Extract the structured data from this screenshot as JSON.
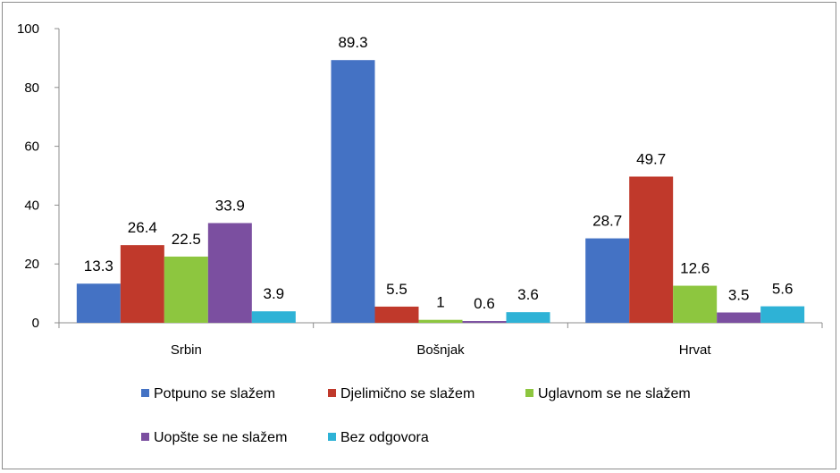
{
  "chart_data": {
    "type": "bar",
    "categories": [
      "Srbin",
      "Bošnjak",
      "Hrvat"
    ],
    "series": [
      {
        "name": "Potpuno se slažem",
        "color": "#4472c4",
        "values": [
          13.3,
          89.3,
          28.7
        ]
      },
      {
        "name": "Djelimično se slažem",
        "color": "#c0392b",
        "values": [
          26.4,
          5.5,
          49.7
        ]
      },
      {
        "name": "Uglavnom se ne slažem",
        "color": "#8dc63f",
        "values": [
          22.5,
          1,
          12.6
        ]
      },
      {
        "name": "Uopšte se ne slažem",
        "color": "#7b4fa0",
        "values": [
          33.9,
          0.6,
          3.5
        ]
      },
      {
        "name": "Bez odgovora",
        "color": "#2eb2d6",
        "values": [
          3.9,
          3.6,
          5.6
        ]
      }
    ],
    "ylim": [
      0,
      100
    ],
    "yticks": [
      0,
      20,
      40,
      60,
      80,
      100
    ],
    "legend": "bottom"
  }
}
